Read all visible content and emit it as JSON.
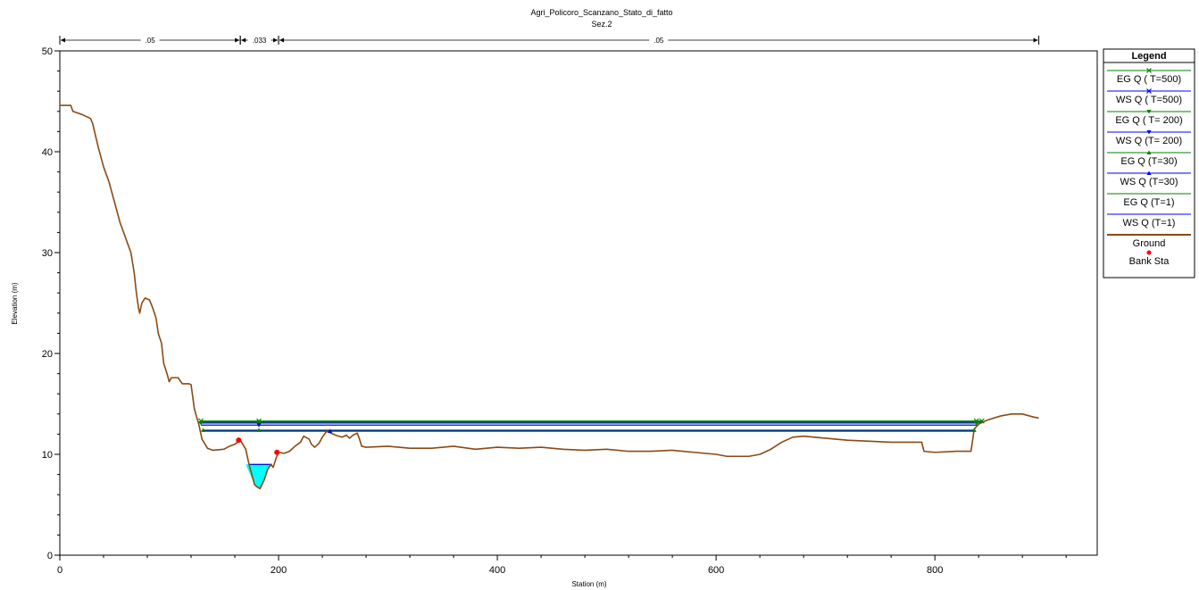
{
  "chart_data": {
    "type": "line",
    "title": "Agri_Policoro_Scanzano_Stato_di_fatto",
    "subtitle": "Sez.2",
    "xlabel": "Station (m)",
    "ylabel": "Elevation (m)",
    "xlim": [
      0,
      950
    ],
    "ylim": [
      0,
      50
    ],
    "x_ticks": [
      0,
      200,
      400,
      600,
      800
    ],
    "y_ticks": [
      0,
      10,
      20,
      30,
      40,
      50
    ],
    "grid": false,
    "legend_position": "right",
    "legend_title": "Legend",
    "manning": [
      {
        "label": ".05",
        "from": 0,
        "to": 165
      },
      {
        "label": ".033",
        "from": 165,
        "to": 200
      },
      {
        "label": ".05",
        "from": 200,
        "to": 895
      }
    ],
    "ground": {
      "name": "Ground",
      "color": "#8b4a12",
      "points": [
        [
          0,
          44.6
        ],
        [
          10,
          44.6
        ],
        [
          12,
          44.0
        ],
        [
          20,
          43.7
        ],
        [
          28,
          43.3
        ],
        [
          30,
          42.8
        ],
        [
          35,
          40.5
        ],
        [
          40,
          38.5
        ],
        [
          45,
          37.0
        ],
        [
          50,
          35.0
        ],
        [
          55,
          33.0
        ],
        [
          60,
          31.5
        ],
        [
          65,
          30.0
        ],
        [
          68,
          28.0
        ],
        [
          70,
          26.0
        ],
        [
          72,
          24.5
        ],
        [
          73,
          24.0
        ],
        [
          75,
          25.0
        ],
        [
          78,
          25.5
        ],
        [
          82,
          25.3
        ],
        [
          85,
          24.5
        ],
        [
          88,
          23.5
        ],
        [
          90,
          22.0
        ],
        [
          93,
          21.0
        ],
        [
          95,
          19.0
        ],
        [
          98,
          18.0
        ],
        [
          100,
          17.2
        ],
        [
          102,
          17.6
        ],
        [
          108,
          17.6
        ],
        [
          112,
          17.0
        ],
        [
          118,
          17.0
        ],
        [
          120,
          16.9
        ],
        [
          123,
          14.5
        ],
        [
          127,
          13.0
        ],
        [
          130,
          11.5
        ],
        [
          135,
          10.6
        ],
        [
          140,
          10.4
        ],
        [
          150,
          10.5
        ],
        [
          155,
          10.8
        ],
        [
          160,
          11.0
        ],
        [
          165,
          11.4
        ],
        [
          170,
          10.5
        ],
        [
          173,
          9.0
        ],
        [
          178,
          7.0
        ],
        [
          180,
          6.8
        ],
        [
          183,
          6.6
        ],
        [
          187,
          7.5
        ],
        [
          190,
          8.5
        ],
        [
          193,
          9.0
        ],
        [
          195,
          8.7
        ],
        [
          198,
          9.7
        ],
        [
          200,
          10.2
        ],
        [
          205,
          10.1
        ],
        [
          210,
          10.3
        ],
        [
          215,
          10.8
        ],
        [
          220,
          11.2
        ],
        [
          223,
          11.8
        ],
        [
          228,
          11.5
        ],
        [
          230,
          11.0
        ],
        [
          233,
          10.7
        ],
        [
          237,
          11.1
        ],
        [
          240,
          11.7
        ],
        [
          244,
          12.3
        ],
        [
          248,
          12.1
        ],
        [
          252,
          11.9
        ],
        [
          258,
          11.7
        ],
        [
          262,
          11.9
        ],
        [
          265,
          11.6
        ],
        [
          268,
          11.9
        ],
        [
          272,
          12.1
        ],
        [
          274,
          11.5
        ],
        [
          276,
          10.8
        ],
        [
          280,
          10.7
        ],
        [
          300,
          10.8
        ],
        [
          320,
          10.6
        ],
        [
          340,
          10.6
        ],
        [
          360,
          10.8
        ],
        [
          380,
          10.5
        ],
        [
          400,
          10.7
        ],
        [
          420,
          10.6
        ],
        [
          440,
          10.7
        ],
        [
          460,
          10.5
        ],
        [
          480,
          10.4
        ],
        [
          500,
          10.5
        ],
        [
          520,
          10.3
        ],
        [
          540,
          10.3
        ],
        [
          560,
          10.4
        ],
        [
          580,
          10.2
        ],
        [
          600,
          10.0
        ],
        [
          610,
          9.8
        ],
        [
          620,
          9.8
        ],
        [
          630,
          9.8
        ],
        [
          640,
          10.0
        ],
        [
          650,
          10.5
        ],
        [
          660,
          11.2
        ],
        [
          670,
          11.7
        ],
        [
          680,
          11.8
        ],
        [
          690,
          11.7
        ],
        [
          700,
          11.6
        ],
        [
          720,
          11.4
        ],
        [
          740,
          11.3
        ],
        [
          760,
          11.2
        ],
        [
          780,
          11.2
        ],
        [
          788,
          11.2
        ],
        [
          790,
          10.3
        ],
        [
          800,
          10.2
        ],
        [
          820,
          10.3
        ],
        [
          833,
          10.3
        ],
        [
          836,
          12.5
        ],
        [
          840,
          13.0
        ],
        [
          848,
          13.4
        ],
        [
          860,
          13.8
        ],
        [
          870,
          14.0
        ],
        [
          880,
          14.0
        ],
        [
          890,
          13.7
        ],
        [
          895,
          13.6
        ]
      ]
    },
    "bank_stations": {
      "name": "Bank Sta",
      "color": "#ff0000",
      "points": [
        [
          163.5,
          11.4
        ],
        [
          198.5,
          10.2
        ]
      ]
    },
    "water_fill": {
      "color": "#00ffff",
      "level": 9.0,
      "x_from": 170,
      "x_to": 193
    },
    "series": [
      {
        "name": "EG Q ( T=500)",
        "color": "#008000",
        "marker": "x",
        "y": 13.3,
        "x_from": 129,
        "x_to": 843,
        "marks": [
          129,
          182,
          838,
          843
        ]
      },
      {
        "name": "WS Q ( T=500)",
        "color": "#0000ff",
        "marker": "x",
        "y": 13.2,
        "x_from": 129,
        "x_to": 843,
        "marks": []
      },
      {
        "name": "EG Q ( T= 200)",
        "color": "#008000",
        "marker": "tri-down",
        "y": 13.1,
        "x_from": 129,
        "x_to": 840,
        "marks": [
          129,
          182,
          838
        ]
      },
      {
        "name": "WS Q (T= 200)",
        "color": "#0000ff",
        "marker": "tri-down",
        "y": 12.9,
        "x_from": 129,
        "x_to": 840,
        "marks": [
          182
        ]
      },
      {
        "name": "EG Q (T=30)",
        "color": "#008000",
        "marker": "tri-up",
        "y": 12.4,
        "x_from": 131,
        "x_to": 836,
        "marks": [
          131,
          182,
          836
        ]
      },
      {
        "name": "WS Q (T=30)",
        "color": "#0000ff",
        "marker": "tri-up",
        "y": 12.3,
        "x_from": 131,
        "x_to": 836,
        "marks": [
          247
        ]
      },
      {
        "name": "EG Q (T=1)",
        "color": "#008000",
        "marker": "none",
        "y": 9.0,
        "x_from": 173,
        "x_to": 194,
        "marks": []
      },
      {
        "name": "WS Q (T=1)",
        "color": "#0000ff",
        "marker": "none",
        "y": 9.0,
        "x_from": 173,
        "x_to": 194,
        "marks": []
      }
    ]
  }
}
